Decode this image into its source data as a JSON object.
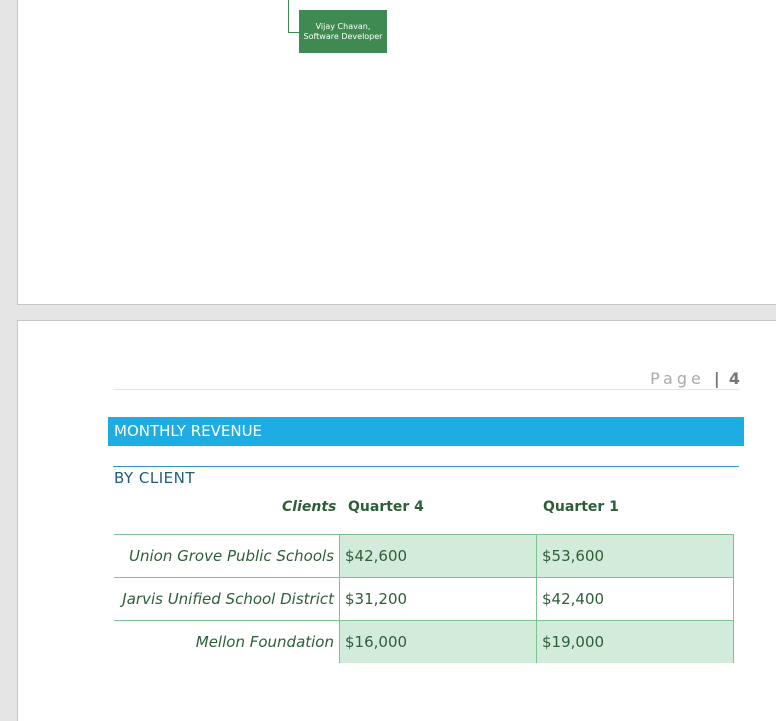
{
  "org_chart": {
    "node": {
      "name": "Vijay Chavan,",
      "title": "Software Developer",
      "color": "#3f8a52"
    }
  },
  "header": {
    "page_label": "Page",
    "separator": "|",
    "page_number": "4"
  },
  "section": {
    "title": "MONTHLY REVENUE",
    "color": "#1eade3",
    "subtitle": "BY CLIENT"
  },
  "table": {
    "headers": [
      "Clients",
      "Quarter 4",
      "Quarter 1"
    ],
    "rows": [
      {
        "client": "Union Grove Public Schools",
        "q4": "$42,600",
        "q1": "$53,600"
      },
      {
        "client": "Jarvis Unified School District",
        "q4": "$31,200",
        "q1": "$42,400"
      },
      {
        "client": "Mellon Foundation",
        "q4": "$16,000",
        "q1": "$19,000"
      }
    ]
  }
}
